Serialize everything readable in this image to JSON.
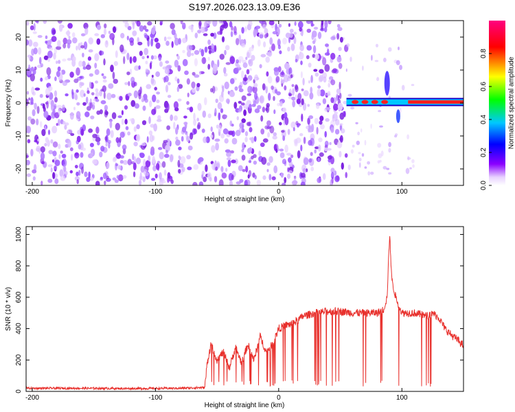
{
  "title": "S197.2026.023.13.09.E36",
  "chart_data": [
    {
      "type": "heatmap",
      "xlabel": "Height of straight line (km)",
      "ylabel": "Frequency (Hz)",
      "xlim": [
        -205,
        150
      ],
      "ylim": [
        -25,
        25
      ],
      "xticks": [
        -200,
        -100,
        0,
        100
      ],
      "yticks": [
        -20,
        -10,
        0,
        10,
        20
      ],
      "colorbar": {
        "label": "Normalized spectral amplitude",
        "range": [
          0,
          1
        ],
        "ticks": [
          "0.0",
          "0.2",
          "0.4",
          "0.6",
          "0.8"
        ],
        "colors": [
          "#ffffff",
          "#8a00ff",
          "#0000ff",
          "#00c8ff",
          "#00ff00",
          "#ffff00",
          "#ff0000",
          "#ff0080"
        ]
      },
      "noise_until_km": 55,
      "signal_line": {
        "frequency_hz": 0.3,
        "from_km": 55,
        "to_km": 150
      }
    },
    {
      "type": "line",
      "xlabel": "Height of straight line (km)",
      "ylabel": "SNR (10 * v/v)",
      "xlim": [
        -205,
        150
      ],
      "ylim": [
        0,
        1050
      ],
      "xticks": [
        -200,
        -100,
        0,
        100
      ],
      "yticks": [
        0,
        200,
        400,
        600,
        800,
        1000
      ],
      "color": "#e8302c",
      "x": [
        -205,
        -160,
        -120,
        -80,
        -60,
        -58,
        -55,
        -50,
        -45,
        -40,
        -35,
        -30,
        -25,
        -20,
        -15,
        -10,
        -5,
        0,
        5,
        10,
        15,
        20,
        30,
        40,
        50,
        60,
        70,
        80,
        85,
        88,
        90,
        92,
        95,
        100,
        110,
        120,
        125,
        130,
        135,
        140,
        145,
        150
      ],
      "values": [
        20,
        20,
        18,
        20,
        25,
        180,
        300,
        200,
        250,
        150,
        280,
        180,
        300,
        200,
        350,
        250,
        300,
        400,
        420,
        430,
        450,
        480,
        500,
        510,
        510,
        500,
        500,
        500,
        520,
        600,
        1000,
        700,
        600,
        500,
        500,
        480,
        500,
        470,
        400,
        360,
        330,
        290
      ]
    }
  ]
}
